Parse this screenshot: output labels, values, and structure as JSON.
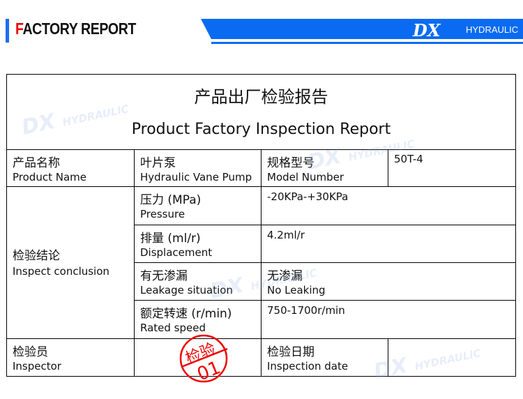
{
  "header": {
    "title_first": "F",
    "title_rest": "ACTORY REPORT",
    "logo_mark": "DX",
    "logo_text": "HYDRAULIC",
    "accent": "#0a6bf2"
  },
  "report": {
    "title_cn": "产品出厂检验报告",
    "title_en": "Product Factory Inspection Report",
    "product_name": {
      "cn": "产品名称",
      "en": "Product Name",
      "value_cn": "叶片泵",
      "value_en": "Hydraulic Vane Pump"
    },
    "model": {
      "cn": "规格型号",
      "en": "Model Number",
      "value": "50T-4"
    },
    "conclusion": {
      "cn": "检验结论",
      "en": "Inspect conclusion"
    },
    "items": [
      {
        "cn": "压力 (MPa)",
        "en": "Pressure",
        "value": "-20KPa-+30KPa"
      },
      {
        "cn": "排量 (ml/r)",
        "en": "Displacement",
        "value": "4.2ml/r"
      },
      {
        "cn": "有无渗漏",
        "en": "Leakage situation",
        "value": "无渗漏",
        "value2": "No Leaking"
      },
      {
        "cn": "额定转速 (r/min)",
        "en": "Rated speed",
        "value": "750-1700r/min"
      }
    ],
    "inspector": {
      "cn": "检验员",
      "en": "Inspector"
    },
    "date": {
      "cn": "检验日期",
      "en": "Inspection date"
    },
    "stamp": {
      "top": "检验",
      "bottom": "01",
      "color": "#e00000"
    }
  }
}
